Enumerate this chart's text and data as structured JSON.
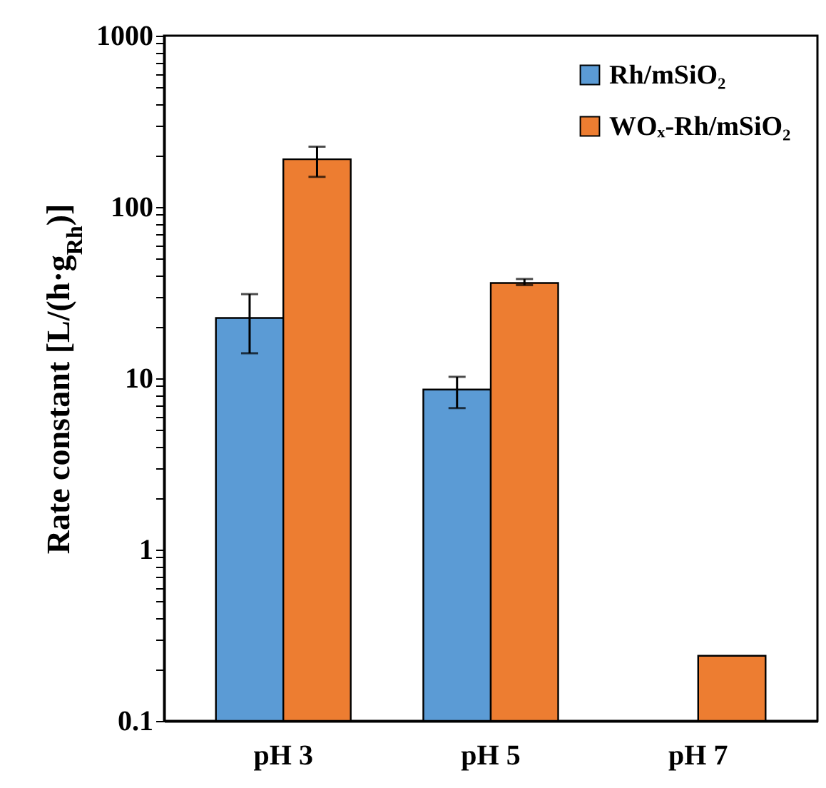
{
  "chart_data": {
    "type": "bar",
    "ylabel": "Rate constant [L/(h·g$_{Rh}$)]",
    "categories": [
      "pH 3",
      "pH 5",
      "pH 7"
    ],
    "series": [
      {
        "name": "Rh/mSiO₂",
        "color": "#5b9bd5",
        "values": [
          22.5,
          8.6,
          null
        ],
        "errors": [
          [
            14,
            31
          ],
          [
            6.7,
            10.2
          ],
          null
        ]
      },
      {
        "name": "WOₓ-Rh/mSiO₂",
        "color": "#ed7d31",
        "values": [
          190,
          36,
          0.24
        ],
        "errors": [
          [
            150,
            225
          ],
          [
            35,
            38
          ],
          null
        ]
      }
    ],
    "log": true,
    "ylim": [
      0.1,
      1000
    ],
    "yticks": [
      {
        "value": 0.1,
        "label": "0.1"
      },
      {
        "value": 0.2,
        "label": null
      },
      {
        "value": 0.3,
        "label": null
      },
      {
        "value": 0.4,
        "label": null
      },
      {
        "value": 0.5,
        "label": null
      },
      {
        "value": 0.6,
        "label": null
      },
      {
        "value": 0.7,
        "label": null
      },
      {
        "value": 0.8,
        "label": null
      },
      {
        "value": 0.9,
        "label": null
      },
      1,
      {
        "value": 2,
        "label": null
      },
      {
        "value": 3,
        "label": null
      },
      {
        "value": 4,
        "label": null
      },
      {
        "value": 5,
        "label": null
      },
      {
        "value": 6,
        "label": null
      },
      {
        "value": 7,
        "label": null
      },
      {
        "value": 8,
        "label": null
      },
      {
        "value": 9,
        "label": null
      },
      10,
      {
        "value": 20,
        "label": null
      },
      {
        "value": 30,
        "label": null
      },
      {
        "value": 40,
        "label": null
      },
      {
        "value": 50,
        "label": null
      },
      {
        "value": 60,
        "label": null
      },
      {
        "value": 70,
        "label": null
      },
      {
        "value": 80,
        "label": null
      },
      {
        "value": 90,
        "label": null
      },
      100,
      {
        "value": 200,
        "label": null
      },
      {
        "value": 300,
        "label": null
      },
      {
        "value": 400,
        "label": null
      },
      {
        "value": 500,
        "label": null
      },
      {
        "value": 600,
        "label": null
      },
      {
        "value": 700,
        "label": null
      },
      {
        "value": 800,
        "label": null
      },
      {
        "value": 900,
        "label": null
      },
      1000
    ],
    "legend": "top right",
    "grid": false
  }
}
